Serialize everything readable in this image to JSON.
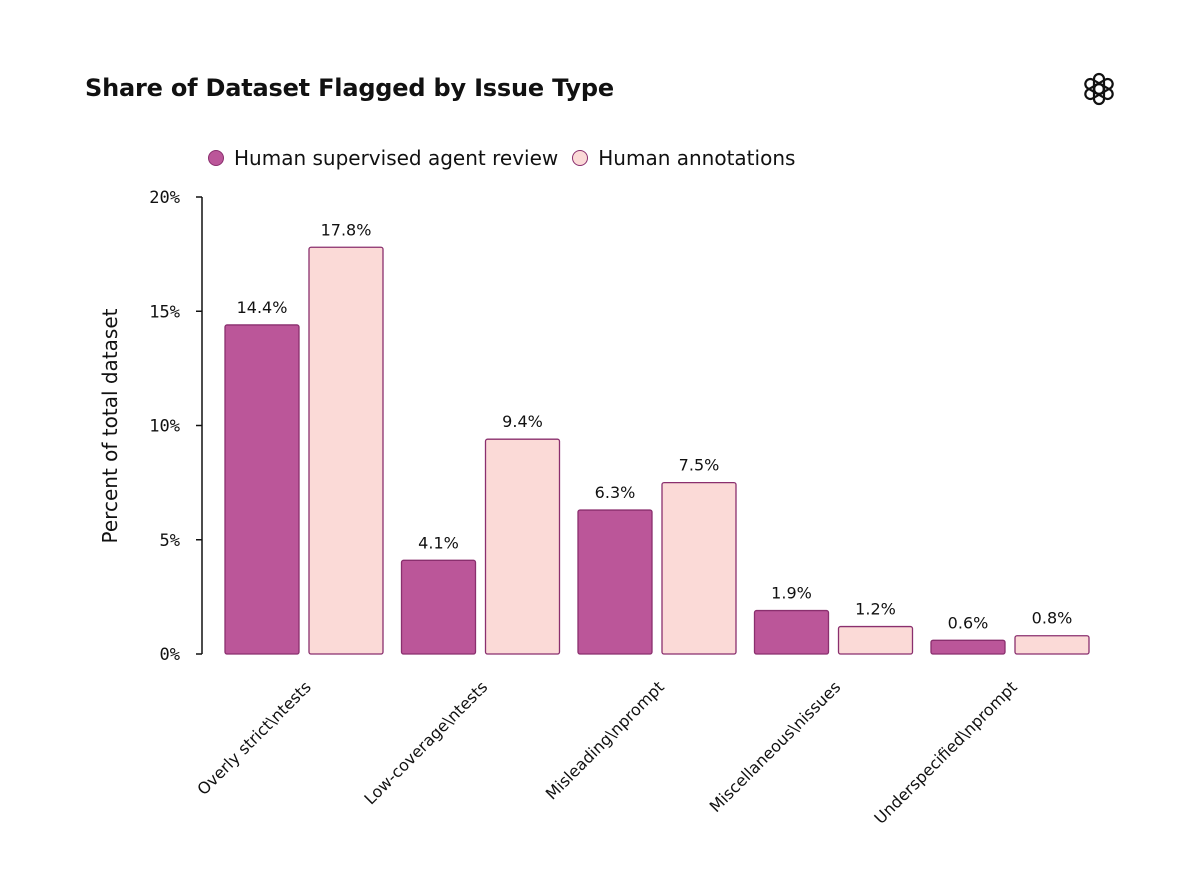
{
  "colors": {
    "series_a": "#bb5699",
    "series_b": "#fbdad7",
    "bar_stroke": "#8a2f6e",
    "axis": "#111111"
  },
  "chart_data": {
    "type": "bar",
    "title": "Share of Dataset Flagged by Issue Type",
    "ylabel": "Percent of total dataset",
    "xlabel": "",
    "ylim": [
      0,
      20
    ],
    "yticks": [
      0,
      5,
      10,
      15,
      20
    ],
    "ytick_labels": [
      "0%",
      "5%",
      "10%",
      "15%",
      "20%"
    ],
    "categories": [
      "Overly strict\\ntests",
      "Low-coverage\\ntests",
      "Misleading\\nprompt",
      "Miscellaneous\\nissues",
      "Underspecified\\nprompt"
    ],
    "series": [
      {
        "name": "Human supervised agent review",
        "values": [
          14.4,
          4.1,
          6.3,
          1.9,
          0.6
        ],
        "labels": [
          "14.4%",
          "4.1%",
          "6.3%",
          "1.9%",
          "0.6%"
        ]
      },
      {
        "name": "Human annotations",
        "values": [
          17.8,
          9.4,
          7.5,
          1.2,
          0.8
        ],
        "labels": [
          "17.8%",
          "9.4%",
          "7.5%",
          "1.2%",
          "0.8%"
        ]
      }
    ],
    "legend_position": "top-left",
    "grid": false
  }
}
